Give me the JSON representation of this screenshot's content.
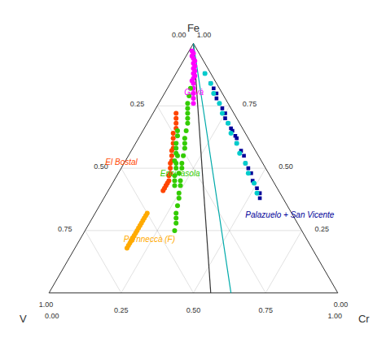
{
  "chart_data": {
    "type": "ternary",
    "components": [
      "Fe",
      "V",
      "Cr"
    ],
    "ticks": [
      [
        {
          "value": 0,
          "label": "0.00"
        },
        0.25,
        {
          "value": 0.5,
          "label": "0.50"
        },
        0.75,
        {
          "value": 1,
          "label": "1.00"
        }
      ],
      [
        {
          "value": 0,
          "label": "0.00"
        },
        0.25,
        {
          "value": 0.5,
          "label": "0.50"
        },
        0.75,
        {
          "value": 1,
          "label": "1.00"
        }
      ],
      [
        {
          "value": 0,
          "label": "0.00"
        },
        0.25,
        {
          "value": 0.5,
          "label": "0.50"
        },
        0.75,
        {
          "value": 1,
          "label": "1.00"
        }
      ]
    ],
    "grid": true,
    "lines": [
      {
        "start": [
          1,
          0,
          0
        ],
        "end": [
          0,
          0.44,
          0.56
        ],
        "color": "#333333"
      },
      {
        "start": [
          1,
          0,
          0
        ],
        "end": [
          0,
          0.37,
          0.63
        ],
        "color": "#00aaaa"
      }
    ],
    "series": [
      {
        "name": "Gavà",
        "color": "#ff00ff",
        "marker": "circle",
        "values": [
          [
            0.97,
            0.02,
            0.01
          ],
          [
            0.96,
            0.02,
            0.02
          ],
          [
            0.95,
            0.03,
            0.02
          ],
          [
            0.94,
            0.03,
            0.03
          ],
          [
            0.93,
            0.03,
            0.04
          ],
          [
            0.92,
            0.04,
            0.04
          ],
          [
            0.91,
            0.04,
            0.05
          ],
          [
            0.9,
            0.05,
            0.05
          ],
          [
            0.89,
            0.05,
            0.06
          ],
          [
            0.88,
            0.06,
            0.06
          ],
          [
            0.87,
            0.06,
            0.07
          ],
          [
            0.86,
            0.07,
            0.07
          ],
          [
            0.85,
            0.08,
            0.07
          ],
          [
            0.84,
            0.08,
            0.08
          ],
          [
            0.82,
            0.09,
            0.09
          ],
          [
            0.8,
            0.1,
            0.1
          ],
          [
            0.78,
            0.11,
            0.11
          ],
          [
            0.76,
            0.12,
            0.12
          ]
        ]
      },
      {
        "name": "El Bostal",
        "color": "#ff4500",
        "marker": "circle",
        "values": [
          [
            0.68,
            0.22,
            0.1
          ],
          [
            0.66,
            0.23,
            0.11
          ],
          [
            0.64,
            0.25,
            0.11
          ],
          [
            0.62,
            0.26,
            0.12
          ],
          [
            0.6,
            0.27,
            0.13
          ],
          [
            0.58,
            0.28,
            0.14
          ],
          [
            0.57,
            0.29,
            0.14
          ],
          [
            0.55,
            0.3,
            0.15
          ],
          [
            0.53,
            0.31,
            0.16
          ],
          [
            0.52,
            0.32,
            0.16
          ],
          [
            0.5,
            0.33,
            0.17
          ],
          [
            0.48,
            0.34,
            0.18
          ],
          [
            0.47,
            0.35,
            0.18
          ],
          [
            0.45,
            0.36,
            0.19
          ],
          [
            0.44,
            0.37,
            0.19
          ],
          [
            0.43,
            0.38,
            0.19
          ],
          [
            0.42,
            0.39,
            0.19
          ],
          [
            0.41,
            0.4,
            0.19
          ],
          [
            0.7,
            0.21,
            0.09
          ],
          [
            0.72,
            0.2,
            0.08
          ]
        ]
      },
      {
        "name": "Encinasola",
        "color": "#33cc00",
        "marker": "circle",
        "values": [
          [
            0.82,
            0.1,
            0.08
          ],
          [
            0.79,
            0.12,
            0.09
          ],
          [
            0.76,
            0.14,
            0.1
          ],
          [
            0.74,
            0.15,
            0.11
          ],
          [
            0.72,
            0.16,
            0.12
          ],
          [
            0.7,
            0.17,
            0.13
          ],
          [
            0.68,
            0.18,
            0.14
          ],
          [
            0.65,
            0.2,
            0.15
          ],
          [
            0.62,
            0.22,
            0.16
          ],
          [
            0.6,
            0.23,
            0.17
          ],
          [
            0.58,
            0.24,
            0.18
          ],
          [
            0.55,
            0.26,
            0.19
          ],
          [
            0.52,
            0.28,
            0.2
          ],
          [
            0.5,
            0.29,
            0.21
          ],
          [
            0.48,
            0.31,
            0.21
          ],
          [
            0.45,
            0.32,
            0.23
          ],
          [
            0.43,
            0.33,
            0.24
          ],
          [
            0.4,
            0.35,
            0.25
          ],
          [
            0.38,
            0.36,
            0.26
          ],
          [
            0.35,
            0.38,
            0.27
          ],
          [
            0.32,
            0.4,
            0.28
          ],
          [
            0.3,
            0.41,
            0.29
          ],
          [
            0.28,
            0.42,
            0.3
          ],
          [
            0.25,
            0.44,
            0.31
          ],
          [
            0.55,
            0.28,
            0.17
          ],
          [
            0.52,
            0.3,
            0.18
          ],
          [
            0.5,
            0.31,
            0.19
          ],
          [
            0.47,
            0.33,
            0.2
          ],
          [
            0.45,
            0.34,
            0.21
          ],
          [
            0.43,
            0.35,
            0.22
          ],
          [
            0.6,
            0.26,
            0.14
          ],
          [
            0.58,
            0.27,
            0.15
          ],
          [
            0.56,
            0.28,
            0.16
          ],
          [
            0.53,
            0.3,
            0.17
          ],
          [
            0.63,
            0.24,
            0.13
          ],
          [
            0.65,
            0.23,
            0.12
          ]
        ]
      },
      {
        "name": "Parnneccà (F)",
        "color": "#ffaa00",
        "marker": "circle",
        "values": [
          [
            0.22,
            0.6,
            0.18
          ],
          [
            0.21,
            0.61,
            0.18
          ],
          [
            0.2,
            0.62,
            0.18
          ],
          [
            0.19,
            0.63,
            0.18
          ],
          [
            0.18,
            0.64,
            0.18
          ],
          [
            0.22,
            0.6,
            0.18
          ],
          [
            0.21,
            0.61,
            0.18
          ],
          [
            0.23,
            0.59,
            0.18
          ],
          [
            0.24,
            0.58,
            0.18
          ],
          [
            0.25,
            0.57,
            0.18
          ],
          [
            0.26,
            0.56,
            0.18
          ],
          [
            0.27,
            0.55,
            0.18
          ],
          [
            0.28,
            0.54,
            0.18
          ],
          [
            0.29,
            0.53,
            0.18
          ],
          [
            0.3,
            0.52,
            0.18
          ],
          [
            0.31,
            0.51,
            0.18
          ],
          [
            0.32,
            0.5,
            0.18
          ]
        ]
      },
      {
        "name": "Palazuelo + San Vicente",
        "color": "#000099",
        "marker": "square",
        "values": [
          [
            0.88,
            0.02,
            0.1
          ],
          [
            0.84,
            0.02,
            0.14
          ],
          [
            0.8,
            0.02,
            0.18
          ],
          [
            0.76,
            0.03,
            0.21
          ],
          [
            0.72,
            0.03,
            0.25
          ],
          [
            0.68,
            0.04,
            0.28
          ],
          [
            0.65,
            0.04,
            0.31
          ],
          [
            0.62,
            0.04,
            0.34
          ],
          [
            0.6,
            0.05,
            0.35
          ],
          [
            0.57,
            0.05,
            0.38
          ],
          [
            0.55,
            0.05,
            0.4
          ],
          [
            0.52,
            0.06,
            0.42
          ],
          [
            0.5,
            0.06,
            0.44
          ],
          [
            0.48,
            0.06,
            0.46
          ],
          [
            0.45,
            0.07,
            0.48
          ],
          [
            0.42,
            0.07,
            0.51
          ],
          [
            0.4,
            0.07,
            0.53
          ],
          [
            0.38,
            0.08,
            0.54
          ],
          [
            0.82,
            0.02,
            0.16
          ],
          [
            0.78,
            0.03,
            0.19
          ],
          [
            0.74,
            0.03,
            0.23
          ],
          [
            0.7,
            0.04,
            0.26
          ],
          [
            0.66,
            0.04,
            0.3
          ],
          [
            0.63,
            0.04,
            0.33
          ]
        ]
      },
      {
        "color": "#00cccc",
        "marker": "circle",
        "values": [
          [
            0.88,
            0.02,
            0.1
          ],
          [
            0.84,
            0.02,
            0.14
          ],
          [
            0.8,
            0.03,
            0.17
          ],
          [
            0.76,
            0.03,
            0.21
          ],
          [
            0.72,
            0.04,
            0.24
          ],
          [
            0.68,
            0.04,
            0.28
          ],
          [
            0.64,
            0.05,
            0.31
          ],
          [
            0.6,
            0.05,
            0.35
          ],
          [
            0.56,
            0.06,
            0.38
          ],
          [
            0.52,
            0.06,
            0.42
          ],
          [
            0.48,
            0.07,
            0.45
          ],
          [
            0.44,
            0.07,
            0.49
          ],
          [
            0.4,
            0.08,
            0.52
          ]
        ]
      }
    ]
  }
}
